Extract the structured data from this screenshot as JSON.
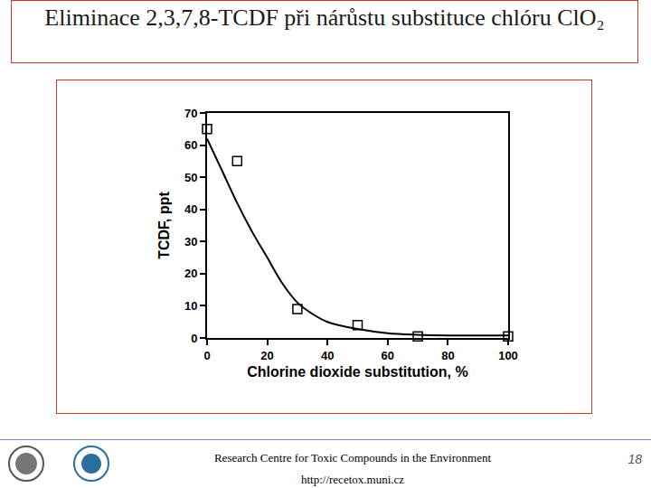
{
  "slide": {
    "title": "Eliminace 2,3,7,8-TCDF při nárůstu substituce chlóru ClO₂",
    "footer": {
      "text": "Research Centre for Toxic Compounds in the Environment",
      "url": "http://recetox.muni.cz",
      "page": 18
    }
  },
  "chart_data": {
    "type": "scatter",
    "x_label": "Chlorine dioxide substitution, %",
    "y_label": "TCDF, ppt",
    "xlim": [
      0,
      100
    ],
    "xticks": [
      0,
      20,
      40,
      60,
      80,
      100
    ],
    "ylim": [
      0,
      70
    ],
    "yticks": [
      0,
      10,
      20,
      30,
      40,
      50,
      60,
      70
    ],
    "grid": false,
    "series": [
      {
        "type": "line",
        "line_style": "smooth",
        "color": "#000000",
        "x": [
          0,
          5,
          10,
          15,
          20,
          25,
          30,
          35,
          40,
          50,
          60,
          70,
          80,
          90,
          100
        ],
        "values": [
          62,
          52,
          42,
          33,
          25,
          17,
          11,
          7.5,
          5,
          2.8,
          1.5,
          1,
          0.8,
          0.8,
          0.8
        ]
      },
      {
        "type": "scatter",
        "marker": "square-open",
        "color": "#000000",
        "x": [
          0,
          10,
          30,
          50,
          70,
          100
        ],
        "values": [
          65,
          55,
          9,
          4,
          0.5,
          0.5
        ]
      }
    ]
  }
}
